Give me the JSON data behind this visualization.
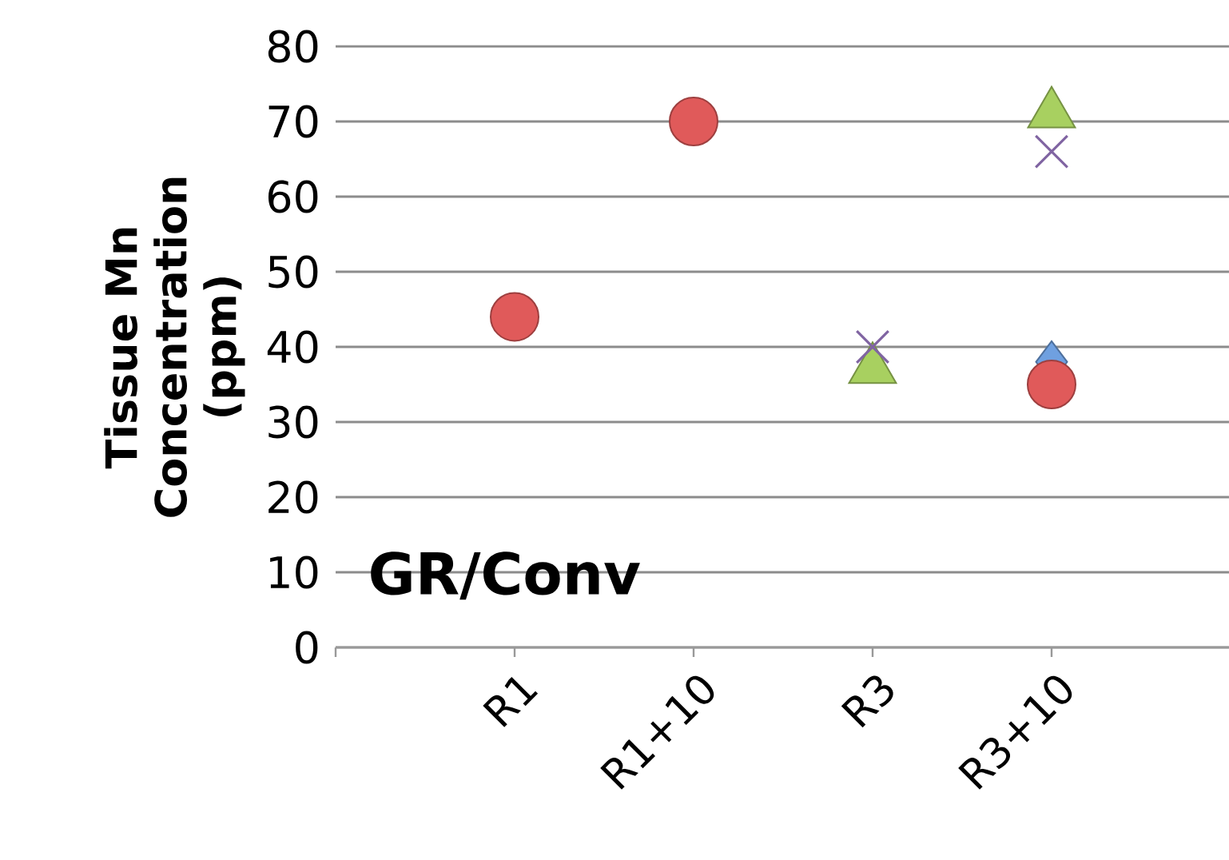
{
  "chart_data": {
    "type": "scatter",
    "ylabel": "Tissue Mn Concentration (ppm)",
    "categories": [
      "R1",
      "R1+10",
      "R3",
      "R3+10"
    ],
    "series": [
      {
        "color": "#6fa0e0",
        "marker": "diamond",
        "values": [
          null,
          null,
          null,
          38
        ]
      },
      {
        "color": "#e05a5a",
        "marker": "circle",
        "values": [
          44,
          70,
          null,
          35
        ]
      },
      {
        "color": "#a8d060",
        "marker": "triangle",
        "values": [
          null,
          null,
          37,
          71
        ]
      },
      {
        "color": "#8064a2",
        "marker": "cross",
        "values": [
          null,
          null,
          40,
          66
        ]
      }
    ],
    "ylim": [
      0,
      80
    ],
    "yticks": [
      0,
      10,
      20,
      30,
      40,
      50,
      60,
      70,
      80
    ],
    "grid": "y",
    "legend": false,
    "annotations": [
      "GR/Conv"
    ]
  }
}
